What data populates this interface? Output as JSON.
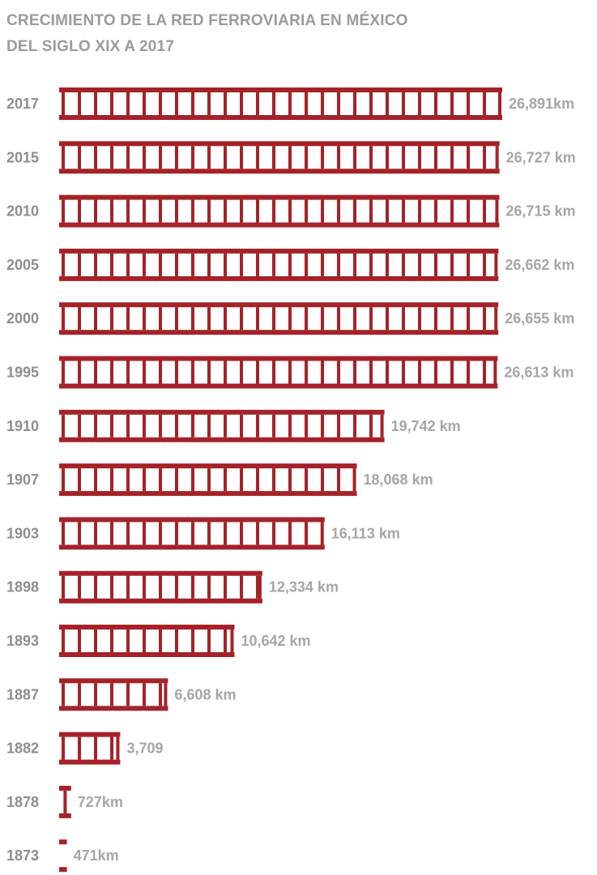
{
  "chart_data": {
    "type": "bar",
    "orientation": "horizontal",
    "title_line1": "CRECIMIENTO DE LA RED FERROVIARIA EN MÉXICO",
    "title_line2": "DEL SIGLO XIX A 2017",
    "unit": "km",
    "categories": [
      "2017",
      "2015",
      "2010",
      "2005",
      "2000",
      "1995",
      "1910",
      "1907",
      "1903",
      "1898",
      "1893",
      "1887",
      "1882",
      "1878",
      "1873"
    ],
    "values": [
      26891,
      26727,
      26715,
      26662,
      26655,
      26613,
      19742,
      18068,
      16113,
      12334,
      10642,
      6608,
      3709,
      727,
      471
    ],
    "value_labels": [
      "26,891km",
      "26,727 km",
      "26,715 km",
      "26,662 km",
      "26,655 km",
      "26,613 km",
      "19,742 km",
      "18,068 km",
      "16,113 km",
      "12,334 km",
      "10,642 km",
      "6,608 km",
      "3,709",
      "727km",
      "471km"
    ],
    "xlim": [
      0,
      26891
    ],
    "legend": "none",
    "grid": false,
    "colors": {
      "bar": "#a52228",
      "title": "#9b9b9b",
      "year_label": "#8e8e8e",
      "value_label": "#a6a6a6"
    }
  }
}
